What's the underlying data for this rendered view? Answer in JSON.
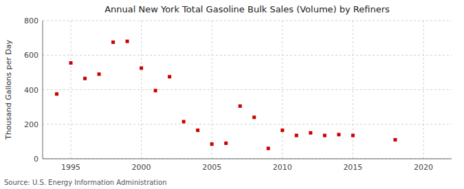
{
  "chart_data": {
    "type": "scatter",
    "title": "Annual New York Total Gasoline Bulk Sales (Volume) by Refiners",
    "y_label": "Thousand Gallons per Day",
    "source": "Source: U.S. Energy Information Administration",
    "x": [
      1994,
      1995,
      1996,
      1997,
      1998,
      1999,
      2000,
      2001,
      2002,
      2003,
      2004,
      2005,
      2006,
      2007,
      2008,
      2009,
      2010,
      2011,
      2012,
      2013,
      2014,
      2015,
      2018
    ],
    "values": [
      375,
      555,
      465,
      490,
      675,
      680,
      525,
      395,
      475,
      215,
      165,
      85,
      90,
      305,
      240,
      60,
      165,
      135,
      150,
      135,
      140,
      135,
      110
    ],
    "color": "#cc0000",
    "marker": "square",
    "xlim": [
      1993,
      2022
    ],
    "ylim": [
      0,
      800
    ],
    "xticks": [
      1995,
      2000,
      2005,
      2010,
      2015,
      2020
    ],
    "yticks": [
      0,
      200,
      400,
      600,
      800
    ],
    "grid": true
  }
}
